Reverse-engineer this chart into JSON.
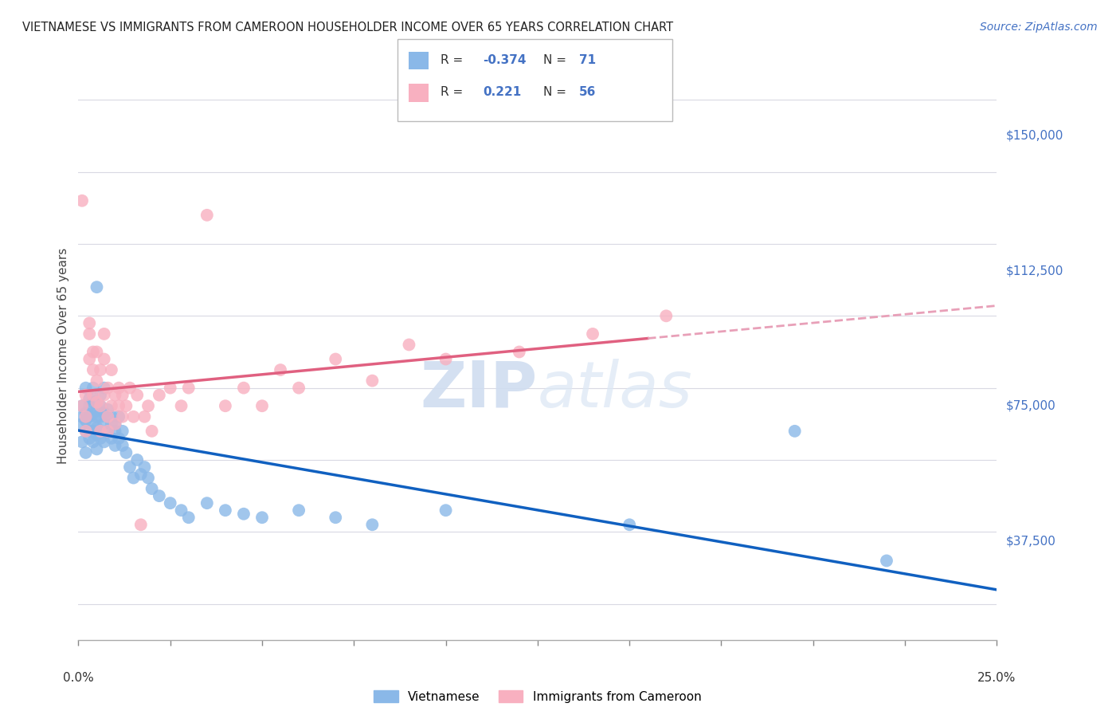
{
  "title": "VIETNAMESE VS IMMIGRANTS FROM CAMEROON HOUSEHOLDER INCOME OVER 65 YEARS CORRELATION CHART",
  "source": "Source: ZipAtlas.com",
  "xlabel_start": "0.0%",
  "xlabel_end": "25.0%",
  "ylabel": "Householder Income Over 65 years",
  "legend_label1": "Vietnamese",
  "legend_label2": "Immigrants from Cameroon",
  "R1": -0.374,
  "N1": 71,
  "R2": 0.221,
  "N2": 56,
  "color_blue": "#8ab8e8",
  "color_pink": "#f8b0c0",
  "color_blue_line": "#1060c0",
  "color_pink_line": "#e06080",
  "color_pink_dashed": "#e8a0b8",
  "ytick_labels": [
    "$37,500",
    "$75,000",
    "$112,500",
    "$150,000"
  ],
  "ytick_values": [
    37500,
    75000,
    112500,
    150000
  ],
  "ymin": 10000,
  "ymax": 168000,
  "xmin": 0.0,
  "xmax": 0.25,
  "watermark_zip": "ZIP",
  "watermark_atlas": "atlas",
  "vietnamese_x": [
    0.001,
    0.001,
    0.001,
    0.001,
    0.002,
    0.002,
    0.002,
    0.002,
    0.002,
    0.003,
    0.003,
    0.003,
    0.003,
    0.003,
    0.004,
    0.004,
    0.004,
    0.004,
    0.004,
    0.004,
    0.005,
    0.005,
    0.005,
    0.005,
    0.005,
    0.005,
    0.006,
    0.006,
    0.006,
    0.006,
    0.006,
    0.007,
    0.007,
    0.007,
    0.007,
    0.008,
    0.008,
    0.008,
    0.009,
    0.009,
    0.009,
    0.01,
    0.01,
    0.01,
    0.011,
    0.011,
    0.012,
    0.012,
    0.013,
    0.014,
    0.015,
    0.016,
    0.017,
    0.018,
    0.019,
    0.02,
    0.022,
    0.025,
    0.028,
    0.03,
    0.035,
    0.04,
    0.045,
    0.05,
    0.06,
    0.07,
    0.08,
    0.1,
    0.15,
    0.195,
    0.22
  ],
  "vietnamese_y": [
    75000,
    70000,
    65000,
    72000,
    68000,
    80000,
    73000,
    62000,
    71000,
    77000,
    66000,
    75000,
    68000,
    72000,
    80000,
    65000,
    70000,
    73000,
    68000,
    76000,
    108000,
    72000,
    67000,
    74000,
    69000,
    63000,
    78000,
    72000,
    66000,
    75000,
    68000,
    80000,
    70000,
    65000,
    73000,
    72000,
    68000,
    74000,
    70000,
    66000,
    72000,
    68000,
    64000,
    70000,
    66000,
    72000,
    64000,
    68000,
    62000,
    58000,
    55000,
    60000,
    56000,
    58000,
    55000,
    52000,
    50000,
    48000,
    46000,
    44000,
    48000,
    46000,
    45000,
    44000,
    46000,
    44000,
    42000,
    46000,
    42000,
    68000,
    32000
  ],
  "cameroon_x": [
    0.001,
    0.001,
    0.002,
    0.002,
    0.002,
    0.003,
    0.003,
    0.003,
    0.004,
    0.004,
    0.004,
    0.005,
    0.005,
    0.005,
    0.006,
    0.006,
    0.006,
    0.007,
    0.007,
    0.007,
    0.008,
    0.008,
    0.008,
    0.009,
    0.009,
    0.01,
    0.01,
    0.011,
    0.011,
    0.012,
    0.012,
    0.013,
    0.014,
    0.015,
    0.016,
    0.017,
    0.018,
    0.019,
    0.02,
    0.022,
    0.025,
    0.028,
    0.03,
    0.035,
    0.04,
    0.045,
    0.05,
    0.055,
    0.06,
    0.07,
    0.08,
    0.09,
    0.1,
    0.12,
    0.14,
    0.16
  ],
  "cameroon_y": [
    75000,
    132000,
    68000,
    78000,
    72000,
    95000,
    98000,
    88000,
    85000,
    90000,
    78000,
    82000,
    76000,
    90000,
    75000,
    68000,
    85000,
    88000,
    78000,
    95000,
    72000,
    80000,
    68000,
    75000,
    85000,
    78000,
    70000,
    75000,
    80000,
    72000,
    78000,
    75000,
    80000,
    72000,
    78000,
    42000,
    72000,
    75000,
    68000,
    78000,
    80000,
    75000,
    80000,
    128000,
    75000,
    80000,
    75000,
    85000,
    80000,
    88000,
    82000,
    92000,
    88000,
    90000,
    95000,
    100000
  ]
}
